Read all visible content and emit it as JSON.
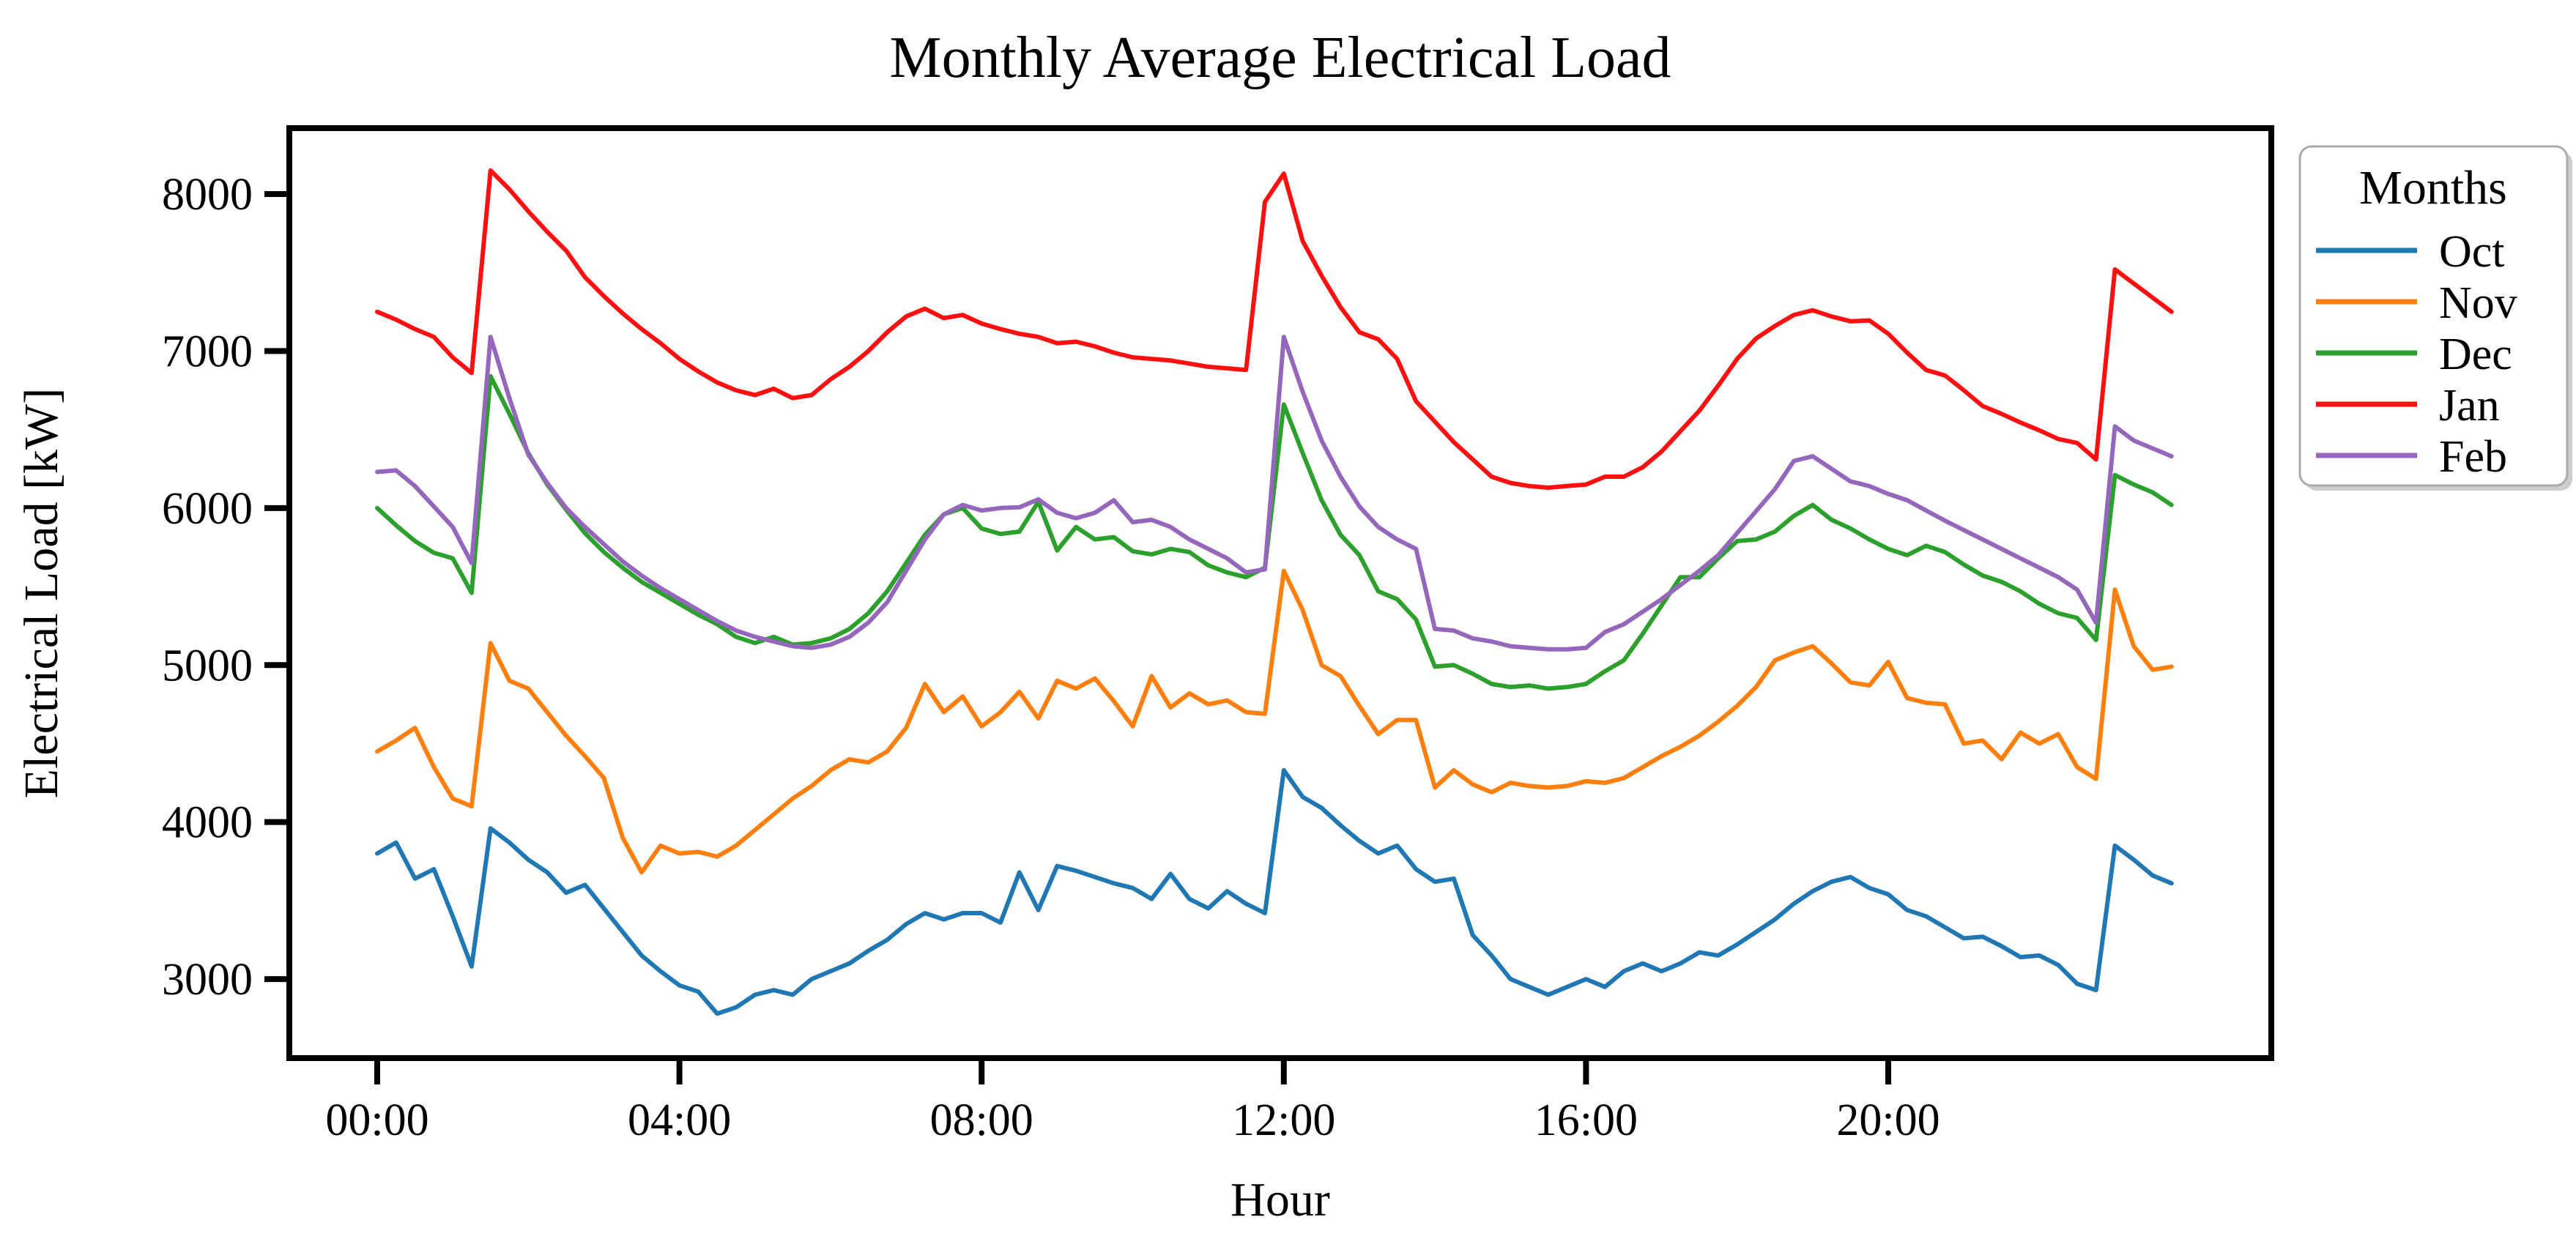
{
  "page": {
    "background": "#ffffff"
  },
  "chart_data": {
    "type": "line",
    "title": "Monthly Average Electrical Load",
    "xlabel": "Hour",
    "ylabel": "Electrical Load [kW]",
    "grid": false,
    "x_tick_labels": [
      "00:00",
      "04:00",
      "08:00",
      "12:00",
      "16:00",
      "20:00"
    ],
    "x_tick_hours": [
      0,
      4,
      8,
      12,
      16,
      20
    ],
    "y_ticks": [
      3000,
      4000,
      5000,
      6000,
      7000,
      8000
    ],
    "xlim_hours": [
      -1.19,
      25.07
    ],
    "ylim": [
      2496,
      8420
    ],
    "legend": {
      "title": "Months",
      "position": "outside-upper-right"
    },
    "hours": [
      0,
      0.25,
      0.5,
      0.75,
      1,
      1.25,
      1.5,
      1.75,
      2,
      2.25,
      2.5,
      2.75,
      3,
      3.25,
      3.5,
      3.75,
      4,
      4.25,
      4.5,
      4.75,
      5,
      5.25,
      5.5,
      5.75,
      6,
      6.25,
      6.5,
      6.75,
      7,
      7.25,
      7.5,
      7.75,
      8,
      8.25,
      8.5,
      8.75,
      9,
      9.25,
      9.5,
      9.75,
      10,
      10.25,
      10.5,
      10.75,
      11,
      11.25,
      11.5,
      11.75,
      12,
      12.25,
      12.5,
      12.75,
      13,
      13.25,
      13.5,
      13.75,
      14,
      14.25,
      14.5,
      14.75,
      15,
      15.25,
      15.5,
      15.75,
      16,
      16.25,
      16.5,
      16.75,
      17,
      17.25,
      17.5,
      17.75,
      18,
      18.25,
      18.5,
      18.75,
      19,
      19.25,
      19.5,
      19.75,
      20,
      20.25,
      20.5,
      20.75,
      21,
      21.25,
      21.5,
      21.75,
      22,
      22.25,
      22.5,
      22.75,
      23,
      23.25,
      23.5,
      23.75
    ],
    "series": [
      {
        "name": "Oct",
        "color": "#1f77b4",
        "values": [
          3800,
          3870,
          3640,
          3700,
          3400,
          3080,
          3960,
          3870,
          3760,
          3680,
          3550,
          3600,
          3450,
          3300,
          3150,
          3050,
          2960,
          2920,
          2780,
          2820,
          2900,
          2930,
          2900,
          3000,
          3050,
          3100,
          3180,
          3250,
          3350,
          3420,
          3380,
          3420,
          3420,
          3360,
          3680,
          3440,
          3720,
          3690,
          3650,
          3610,
          3580,
          3510,
          3670,
          3510,
          3450,
          3560,
          3480,
          3420,
          4330,
          4160,
          4090,
          3980,
          3880,
          3800,
          3850,
          3700,
          3620,
          3640,
          3280,
          3150,
          3000,
          2950,
          2900,
          2950,
          3000,
          2950,
          3050,
          3100,
          3050,
          3100,
          3170,
          3150,
          3220,
          3300,
          3380,
          3480,
          3560,
          3620,
          3650,
          3580,
          3540,
          3440,
          3400,
          3330,
          3260,
          3270,
          3210,
          3140,
          3150,
          3090,
          2970,
          2930,
          3850,
          3760,
          3660,
          3610
        ]
      },
      {
        "name": "Nov",
        "color": "#ff7f0e",
        "values": [
          4450,
          4520,
          4600,
          4350,
          4150,
          4100,
          5140,
          4900,
          4850,
          4700,
          4550,
          4420,
          4280,
          3900,
          3680,
          3850,
          3800,
          3810,
          3780,
          3850,
          3950,
          4050,
          4150,
          4230,
          4330,
          4400,
          4380,
          4450,
          4600,
          4880,
          4700,
          4800,
          4610,
          4700,
          4830,
          4660,
          4900,
          4850,
          4915,
          4770,
          4610,
          4930,
          4730,
          4820,
          4750,
          4775,
          4700,
          4690,
          5600,
          5350,
          5000,
          4930,
          4740,
          4560,
          4650,
          4650,
          4220,
          4330,
          4240,
          4190,
          4250,
          4230,
          4220,
          4230,
          4260,
          4250,
          4280,
          4350,
          4420,
          4480,
          4550,
          4640,
          4740,
          4860,
          5030,
          5080,
          5120,
          5010,
          4890,
          4870,
          5020,
          4790,
          4760,
          4750,
          4500,
          4520,
          4400,
          4570,
          4500,
          4560,
          4350,
          4275,
          5480,
          5120,
          4970,
          4990
        ]
      },
      {
        "name": "Dec",
        "color": "#2ca02c",
        "values": [
          6000,
          5890,
          5790,
          5715,
          5680,
          5460,
          6840,
          6600,
          6350,
          6150,
          5990,
          5840,
          5720,
          5620,
          5530,
          5460,
          5390,
          5320,
          5260,
          5180,
          5140,
          5180,
          5130,
          5140,
          5170,
          5230,
          5330,
          5470,
          5650,
          5830,
          5960,
          6000,
          5870,
          5835,
          5850,
          6040,
          5730,
          5880,
          5800,
          5815,
          5725,
          5705,
          5740,
          5720,
          5635,
          5590,
          5560,
          5620,
          6660,
          6350,
          6050,
          5830,
          5700,
          5470,
          5420,
          5290,
          4990,
          5000,
          4945,
          4880,
          4860,
          4870,
          4850,
          4860,
          4880,
          4960,
          5030,
          5200,
          5380,
          5560,
          5560,
          5680,
          5790,
          5800,
          5850,
          5950,
          6020,
          5925,
          5870,
          5800,
          5740,
          5700,
          5760,
          5720,
          5640,
          5570,
          5530,
          5470,
          5390,
          5330,
          5300,
          5160,
          6210,
          6150,
          6100,
          6020
        ]
      },
      {
        "name": "Jan",
        "color": "#ff0f0f",
        "values": [
          7250,
          7200,
          7140,
          7090,
          6960,
          6860,
          8150,
          8030,
          7890,
          7760,
          7640,
          7470,
          7350,
          7240,
          7140,
          7050,
          6950,
          6870,
          6800,
          6750,
          6720,
          6760,
          6700,
          6720,
          6820,
          6900,
          7000,
          7120,
          7220,
          7270,
          7210,
          7230,
          7175,
          7140,
          7110,
          7090,
          7050,
          7060,
          7030,
          6990,
          6960,
          6950,
          6940,
          6920,
          6900,
          6890,
          6880,
          7950,
          8130,
          7700,
          7480,
          7280,
          7120,
          7075,
          6950,
          6680,
          6550,
          6420,
          6310,
          6200,
          6160,
          6140,
          6130,
          6140,
          6150,
          6200,
          6200,
          6260,
          6360,
          6490,
          6620,
          6780,
          6950,
          7080,
          7160,
          7230,
          7260,
          7220,
          7190,
          7195,
          7110,
          6990,
          6880,
          6845,
          6750,
          6650,
          6600,
          6545,
          6495,
          6440,
          6415,
          6310,
          7520,
          7430,
          7340,
          7250
        ]
      },
      {
        "name": "Feb",
        "color": "#9467bd",
        "values": [
          6230,
          6240,
          6140,
          6010,
          5880,
          5650,
          7090,
          6700,
          6340,
          6160,
          6000,
          5880,
          5770,
          5660,
          5570,
          5490,
          5420,
          5350,
          5280,
          5220,
          5180,
          5150,
          5120,
          5110,
          5130,
          5180,
          5270,
          5400,
          5600,
          5800,
          5960,
          6020,
          5985,
          6000,
          6005,
          6055,
          5970,
          5935,
          5970,
          6050,
          5910,
          5925,
          5880,
          5800,
          5740,
          5680,
          5590,
          5610,
          7090,
          6740,
          6430,
          6200,
          6010,
          5880,
          5800,
          5740,
          5230,
          5220,
          5170,
          5150,
          5120,
          5110,
          5100,
          5100,
          5110,
          5210,
          5260,
          5340,
          5420,
          5510,
          5600,
          5700,
          5840,
          5980,
          6120,
          6300,
          6330,
          6250,
          6170,
          6140,
          6090,
          6050,
          5985,
          5920,
          5860,
          5800,
          5740,
          5680,
          5620,
          5560,
          5480,
          5270,
          6520,
          6430,
          6380,
          6330
        ]
      }
    ]
  }
}
